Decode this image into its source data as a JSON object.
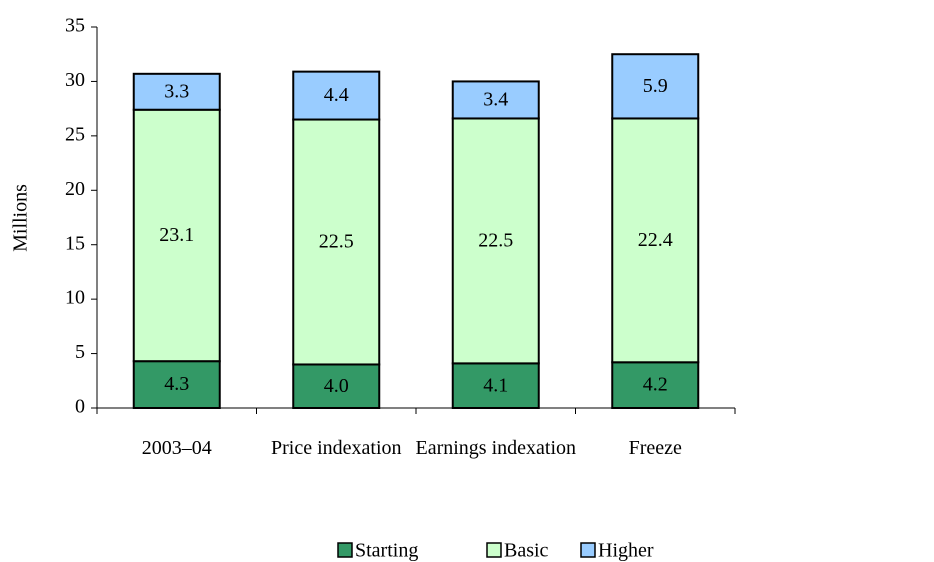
{
  "chart_data": {
    "type": "bar",
    "stacked": true,
    "y_label": "Millions",
    "categories": [
      "2003–04",
      "Price indexation",
      "Earnings indexation",
      "Freeze"
    ],
    "series": [
      {
        "name": "Starting",
        "color": "#339966",
        "values": [
          4.3,
          4.0,
          4.1,
          4.2
        ],
        "value_labels": [
          "4.3",
          "4.0",
          "4.1",
          "4.2"
        ]
      },
      {
        "name": "Basic",
        "color": "#ccffcc",
        "values": [
          23.1,
          22.5,
          22.5,
          22.4
        ],
        "value_labels": [
          "23.1",
          "22.5",
          "22.5",
          "22.4"
        ]
      },
      {
        "name": "Higher",
        "color": "#99ccff",
        "values": [
          3.3,
          4.4,
          3.4,
          5.9
        ],
        "value_labels": [
          "3.3",
          "4.4",
          "3.4",
          "5.9"
        ]
      }
    ],
    "ylim": [
      0,
      35
    ],
    "yticks": [
      0,
      5,
      10,
      15,
      20,
      25,
      30,
      35
    ]
  }
}
